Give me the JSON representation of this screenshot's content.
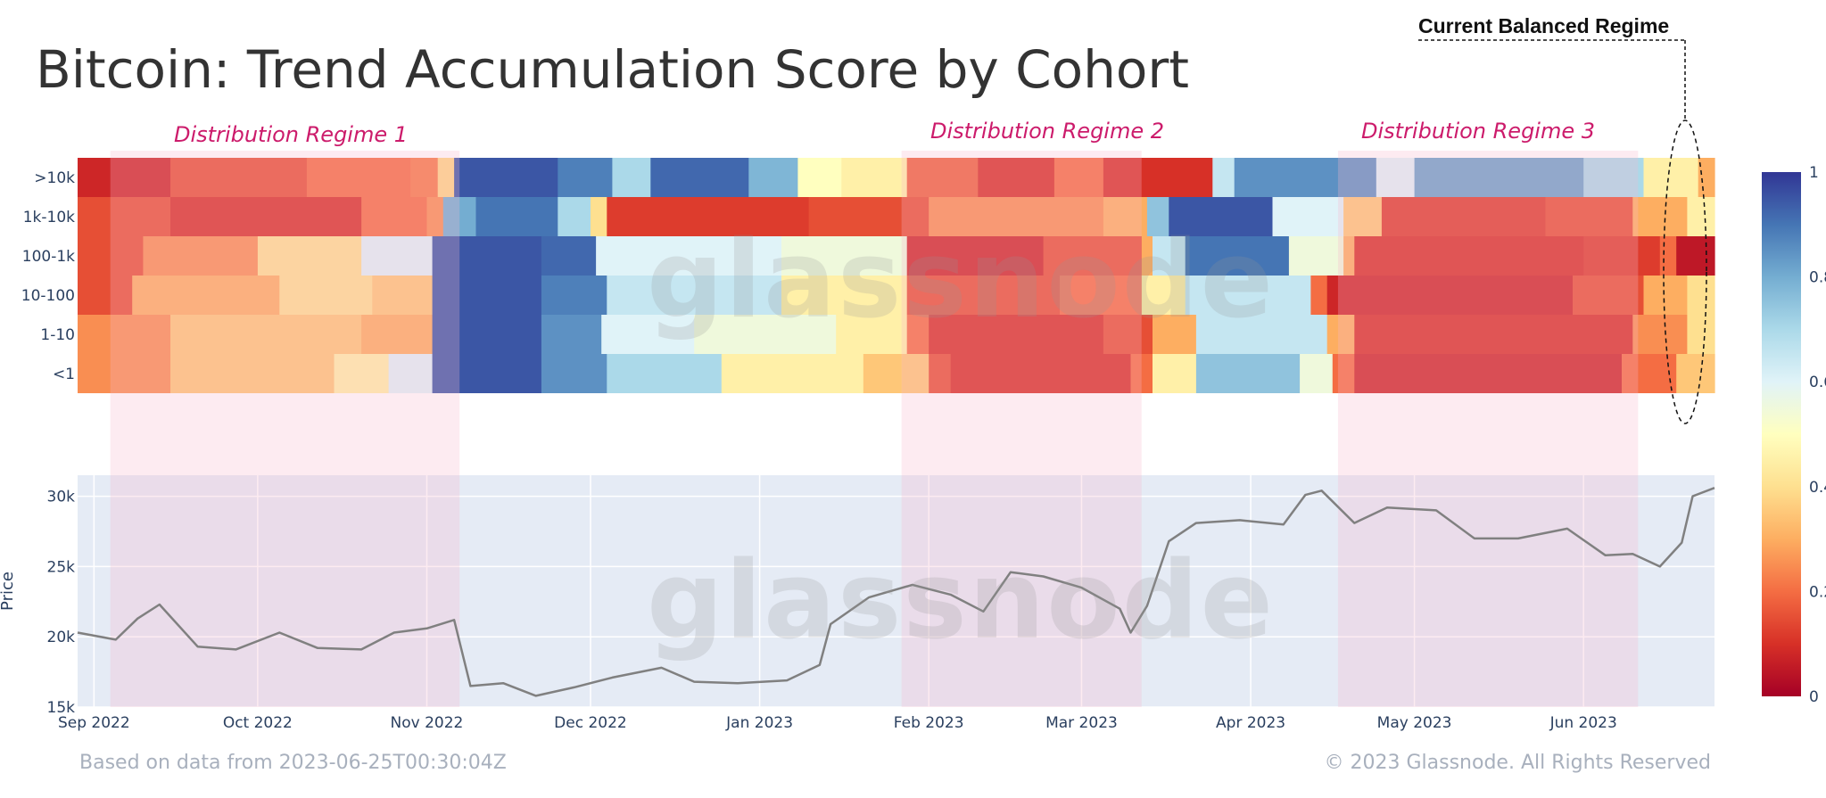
{
  "title": "Bitcoin: Trend Accumulation Score by Cohort",
  "callout": "Current Balanced Regime",
  "watermark": "glassnode",
  "footer": {
    "left": "Based on data from 2023-06-25T00:30:04Z",
    "right": "© 2023 Glassnode. All Rights Reserved"
  },
  "colors": {
    "regime_shade": "#f8b8cc",
    "price_line": "#808080",
    "price_bg": "#e5ebf5",
    "annotation": "#cc1b6b"
  },
  "chart_data": [
    {
      "type": "heatmap",
      "title": "Bitcoin: Trend Accumulation Score by Cohort",
      "rows": [
        ">10k",
        "1k-10k",
        "100-1k",
        "10-100",
        "1-10",
        "<1"
      ],
      "x_ticks": [
        "Sep 2022",
        "Oct 2022",
        "Nov 2022",
        "Dec 2022",
        "Jan 2023",
        "Feb 2023",
        "Mar 2023",
        "Apr 2023",
        "May 2023",
        "Jun 2023"
      ],
      "x_range": [
        "2022-08-29",
        "2023-06-25"
      ],
      "colorbar": {
        "range": [
          0,
          1
        ],
        "ticks": [
          "1",
          "0.8",
          "0.6",
          "0.4",
          "0.2",
          "0"
        ],
        "colorscale": "RdYlBu"
      },
      "segments": {
        ">10k": [
          [
            "2022-08-29",
            0.08
          ],
          [
            "2022-09-15",
            0.15
          ],
          [
            "2022-10-10",
            0.2
          ],
          [
            "2022-10-29",
            0.22
          ],
          [
            "2022-11-03",
            0.38
          ],
          [
            "2022-11-06",
            0.95
          ],
          [
            "2022-11-25",
            0.88
          ],
          [
            "2022-12-05",
            0.7
          ],
          [
            "2022-12-12",
            0.92
          ],
          [
            "2022-12-30",
            0.78
          ],
          [
            "2023-01-08",
            0.5
          ],
          [
            "2023-01-16",
            0.45
          ],
          [
            "2023-01-28",
            0.18
          ],
          [
            "2023-02-10",
            0.1
          ],
          [
            "2023-02-24",
            0.2
          ],
          [
            "2023-03-05",
            0.1
          ],
          [
            "2023-03-25",
            0.65
          ],
          [
            "2023-03-29",
            0.85
          ],
          [
            "2023-04-24",
            0.6
          ],
          [
            "2023-05-01",
            0.82
          ],
          [
            "2023-06-01",
            0.7
          ],
          [
            "2023-06-12",
            0.45
          ],
          [
            "2023-06-22",
            0.3
          ]
        ],
        "1k-10k": [
          [
            "2022-08-29",
            0.15
          ],
          [
            "2022-09-15",
            0.1
          ],
          [
            "2022-10-20",
            0.2
          ],
          [
            "2022-11-01",
            0.25
          ],
          [
            "2022-11-04",
            0.8
          ],
          [
            "2022-11-10",
            0.9
          ],
          [
            "2022-11-25",
            0.7
          ],
          [
            "2022-12-01",
            0.4
          ],
          [
            "2022-12-04",
            0.12
          ],
          [
            "2023-01-10",
            0.15
          ],
          [
            "2023-02-01",
            0.25
          ],
          [
            "2023-03-05",
            0.3
          ],
          [
            "2023-03-13",
            0.75
          ],
          [
            "2023-03-17",
            0.95
          ],
          [
            "2023-04-05",
            0.6
          ],
          [
            "2023-04-18",
            0.35
          ],
          [
            "2023-04-25",
            0.12
          ],
          [
            "2023-05-25",
            0.15
          ],
          [
            "2023-06-10",
            0.3
          ],
          [
            "2023-06-20",
            0.45
          ]
        ],
        "100-1k": [
          [
            "2022-08-29",
            0.15
          ],
          [
            "2022-09-10",
            0.25
          ],
          [
            "2022-10-01",
            0.4
          ],
          [
            "2022-10-20",
            0.6
          ],
          [
            "2022-11-02",
            0.95
          ],
          [
            "2022-11-22",
            0.92
          ],
          [
            "2022-12-02",
            0.6
          ],
          [
            "2023-01-05",
            0.55
          ],
          [
            "2023-01-28",
            0.08
          ],
          [
            "2023-02-22",
            0.15
          ],
          [
            "2023-03-12",
            0.3
          ],
          [
            "2023-03-14",
            0.65
          ],
          [
            "2023-03-20",
            0.9
          ],
          [
            "2023-04-08",
            0.55
          ],
          [
            "2023-04-18",
            0.3
          ],
          [
            "2023-04-20",
            0.1
          ],
          [
            "2023-06-01",
            0.12
          ],
          [
            "2023-06-15",
            0.2
          ],
          [
            "2023-06-18",
            0.05
          ]
        ],
        "10-100": [
          [
            "2022-08-29",
            0.15
          ],
          [
            "2022-09-08",
            0.3
          ],
          [
            "2022-10-05",
            0.4
          ],
          [
            "2022-10-22",
            0.35
          ],
          [
            "2022-11-02",
            0.95
          ],
          [
            "2022-11-22",
            0.88
          ],
          [
            "2022-12-04",
            0.65
          ],
          [
            "2023-01-05",
            0.45
          ],
          [
            "2023-01-28",
            0.15
          ],
          [
            "2023-02-25",
            0.2
          ],
          [
            "2023-03-12",
            0.45
          ],
          [
            "2023-03-20",
            0.65
          ],
          [
            "2023-04-12",
            0.2
          ],
          [
            "2023-04-15",
            0.08
          ],
          [
            "2023-05-30",
            0.15
          ],
          [
            "2023-06-12",
            0.3
          ],
          [
            "2023-06-20",
            0.4
          ]
        ],
        "1-10": [
          [
            "2022-08-29",
            0.25
          ],
          [
            "2022-09-15",
            0.35
          ],
          [
            "2022-10-20",
            0.3
          ],
          [
            "2022-11-02",
            0.95
          ],
          [
            "2022-11-22",
            0.85
          ],
          [
            "2022-12-03",
            0.6
          ],
          [
            "2022-12-20",
            0.55
          ],
          [
            "2023-01-15",
            0.45
          ],
          [
            "2023-01-28",
            0.2
          ],
          [
            "2023-02-01",
            0.1
          ],
          [
            "2023-03-05",
            0.15
          ],
          [
            "2023-03-14",
            0.3
          ],
          [
            "2023-03-22",
            0.65
          ],
          [
            "2023-04-15",
            0.3
          ],
          [
            "2023-04-20",
            0.1
          ],
          [
            "2023-06-10",
            0.25
          ],
          [
            "2023-06-20",
            0.4
          ]
        ],
        "<1": [
          [
            "2022-08-29",
            0.25
          ],
          [
            "2022-09-15",
            0.35
          ],
          [
            "2022-10-15",
            0.45
          ],
          [
            "2022-10-25",
            0.6
          ],
          [
            "2022-11-02",
            0.95
          ],
          [
            "2022-11-22",
            0.85
          ],
          [
            "2022-12-04",
            0.7
          ],
          [
            "2022-12-25",
            0.45
          ],
          [
            "2023-01-20",
            0.35
          ],
          [
            "2023-02-01",
            0.15
          ],
          [
            "2023-02-05",
            0.1
          ],
          [
            "2023-03-10",
            0.2
          ],
          [
            "2023-03-14",
            0.45
          ],
          [
            "2023-03-22",
            0.75
          ],
          [
            "2023-04-10",
            0.55
          ],
          [
            "2023-04-16",
            0.2
          ],
          [
            "2023-04-20",
            0.08
          ],
          [
            "2023-06-08",
            0.2
          ],
          [
            "2023-06-18",
            0.35
          ]
        ]
      }
    },
    {
      "type": "line",
      "ylabel": "Price",
      "y_ticks": [
        "30k",
        "25k",
        "20k",
        "15k"
      ],
      "ylim": [
        15000,
        31500
      ],
      "x_range": [
        "2022-08-29",
        "2023-06-25"
      ],
      "x_ticks": [
        "Sep 2022",
        "Oct 2022",
        "Nov 2022",
        "Dec 2022",
        "Jan 2023",
        "Feb 2023",
        "Mar 2023",
        "Apr 2023",
        "May 2023",
        "Jun 2023"
      ],
      "x": [
        "2022-08-29",
        "2022-09-05",
        "2022-09-09",
        "2022-09-13",
        "2022-09-20",
        "2022-09-27",
        "2022-10-05",
        "2022-10-12",
        "2022-10-20",
        "2022-10-26",
        "2022-11-01",
        "2022-11-06",
        "2022-11-09",
        "2022-11-15",
        "2022-11-21",
        "2022-11-28",
        "2022-12-05",
        "2022-12-14",
        "2022-12-20",
        "2022-12-28",
        "2023-01-06",
        "2023-01-12",
        "2023-01-14",
        "2023-01-21",
        "2023-01-29",
        "2023-02-05",
        "2023-02-11",
        "2023-02-16",
        "2023-02-22",
        "2023-03-01",
        "2023-03-08",
        "2023-03-10",
        "2023-03-13",
        "2023-03-17",
        "2023-03-22",
        "2023-03-30",
        "2023-04-07",
        "2023-04-11",
        "2023-04-14",
        "2023-04-20",
        "2023-04-26",
        "2023-05-05",
        "2023-05-12",
        "2023-05-20",
        "2023-05-29",
        "2023-06-05",
        "2023-06-10",
        "2023-06-15",
        "2023-06-19",
        "2023-06-21",
        "2023-06-25"
      ],
      "y": [
        20300,
        19800,
        21300,
        22300,
        19300,
        19100,
        20300,
        19200,
        19100,
        20300,
        20600,
        21200,
        16500,
        16700,
        15800,
        16400,
        17100,
        17800,
        16800,
        16700,
        16900,
        18000,
        20900,
        22800,
        23700,
        23000,
        21800,
        24600,
        24300,
        23500,
        22000,
        20300,
        22200,
        26800,
        28100,
        28300,
        28000,
        30100,
        30400,
        28100,
        29200,
        29000,
        27000,
        27000,
        27700,
        25800,
        25900,
        25000,
        26700,
        30000,
        30600
      ]
    }
  ],
  "regimes": [
    {
      "label": "Distribution Regime 1",
      "start": "2022-09-04",
      "end": "2022-11-07"
    },
    {
      "label": "Distribution Regime 2",
      "start": "2023-01-27",
      "end": "2023-03-12"
    },
    {
      "label": "Distribution Regime 3",
      "start": "2023-04-17",
      "end": "2023-06-11"
    }
  ]
}
